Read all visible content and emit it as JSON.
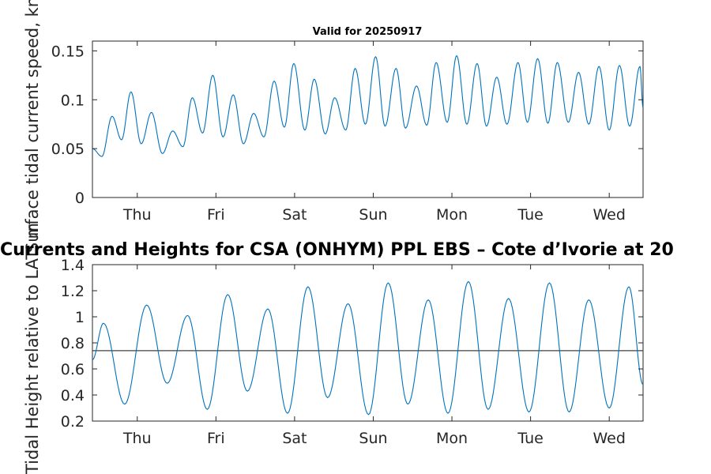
{
  "main_title": "Currents and Heights for CSA (ONHYM) PPL EBS  – Cote d’Ivorie at 20",
  "colors": {
    "series": "#0072BD",
    "reference_line": "#404040",
    "axes": "#262626"
  },
  "chart_data": [
    {
      "type": "line",
      "title": "Valid for 20250917",
      "ylabel": "Surface tidal current speed, kn",
      "xlim": [
        0,
        7
      ],
      "ylim": [
        0,
        0.16
      ],
      "yticks": [
        0,
        0.05,
        0.1,
        0.15
      ],
      "ytick_labels": [
        "0",
        "0.05",
        "0.1",
        "0.15"
      ],
      "xtick_positions": [
        0.57,
        1.57,
        2.57,
        3.57,
        4.57,
        5.57,
        6.57
      ],
      "xtick_labels": [
        "Thu",
        "Fri",
        "Sat",
        "Sun",
        "Mon",
        "Tue",
        "Wed"
      ],
      "grid": false,
      "series": [
        {
          "x": [
            0,
            0.12,
            0.25,
            0.37,
            0.49,
            0.62,
            0.75,
            0.89,
            1.02,
            1.15,
            1.27,
            1.4,
            1.53,
            1.66,
            1.79,
            1.92,
            2.05,
            2.18,
            2.31,
            2.44,
            2.56,
            2.7,
            2.82,
            2.96,
            3.08,
            3.22,
            3.34,
            3.47,
            3.6,
            3.72,
            3.86,
            3.98,
            4.12,
            4.25,
            4.37,
            4.51,
            4.63,
            4.76,
            4.89,
            5.01,
            5.14,
            5.27,
            5.41,
            5.53,
            5.66,
            5.79,
            5.91,
            6.05,
            6.18,
            6.31,
            6.44,
            6.57,
            6.7,
            6.83,
            6.96,
            7.0
          ],
          "values": [
            0.05,
            0.042,
            0.083,
            0.059,
            0.108,
            0.055,
            0.087,
            0.045,
            0.068,
            0.052,
            0.102,
            0.066,
            0.125,
            0.062,
            0.105,
            0.055,
            0.086,
            0.062,
            0.119,
            0.072,
            0.137,
            0.069,
            0.121,
            0.065,
            0.102,
            0.069,
            0.132,
            0.075,
            0.144,
            0.073,
            0.132,
            0.071,
            0.114,
            0.074,
            0.138,
            0.077,
            0.145,
            0.075,
            0.137,
            0.073,
            0.123,
            0.075,
            0.138,
            0.077,
            0.142,
            0.076,
            0.138,
            0.077,
            0.128,
            0.075,
            0.134,
            0.069,
            0.135,
            0.073,
            0.134,
            0.092
          ]
        }
      ]
    },
    {
      "type": "line",
      "ylabel": "Tidal Height relative to LAT, m",
      "xlim": [
        0,
        7
      ],
      "ylim": [
        0.2,
        1.4
      ],
      "yticks": [
        0.2,
        0.4,
        0.6,
        0.8,
        1,
        1.2,
        1.4
      ],
      "ytick_labels": [
        "0.2",
        "0.4",
        "0.6",
        "0.8",
        "1",
        "1.2",
        "1.4"
      ],
      "xtick_positions": [
        0.57,
        1.57,
        2.57,
        3.57,
        4.57,
        5.57,
        6.57
      ],
      "xtick_labels": [
        "Thu",
        "Fri",
        "Sat",
        "Sun",
        "Mon",
        "Tue",
        "Wed"
      ],
      "grid": false,
      "reference_line": 0.74,
      "series": [
        {
          "x": [
            0,
            0.14,
            0.41,
            0.69,
            0.95,
            1.21,
            1.46,
            1.72,
            1.97,
            2.23,
            2.48,
            2.74,
            2.99,
            3.25,
            3.51,
            3.76,
            4.01,
            4.27,
            4.52,
            4.78,
            5.03,
            5.29,
            5.55,
            5.81,
            6.06,
            6.31,
            6.57,
            6.82,
            7.0
          ],
          "values": [
            0.67,
            0.95,
            0.33,
            1.09,
            0.49,
            1.01,
            0.29,
            1.17,
            0.43,
            1.06,
            0.26,
            1.23,
            0.38,
            1.1,
            0.25,
            1.26,
            0.33,
            1.13,
            0.26,
            1.27,
            0.29,
            1.14,
            0.27,
            1.26,
            0.27,
            1.13,
            0.3,
            1.23,
            0.48
          ]
        }
      ]
    }
  ]
}
